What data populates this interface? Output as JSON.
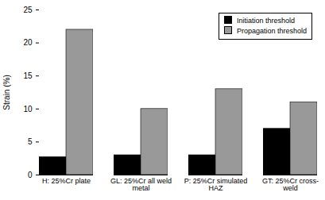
{
  "chart_data": {
    "type": "bar",
    "y_label": "Strain (%)",
    "categories": [
      "H: 25%Cr plate",
      "GL: 25%Cr all weld metal",
      "P: 25%Cr simulated HAZ",
      "GT: 25%Cr cross-weld"
    ],
    "series": [
      {
        "name": "Initiation threshold",
        "color": "#000000",
        "values": [
          2.7,
          3,
          3,
          7
        ]
      },
      {
        "name": "Propagation threshold",
        "color": "#999999",
        "values": [
          22,
          10,
          13,
          11
        ]
      }
    ],
    "ylim": [
      0,
      25
    ],
    "yticks": [
      0,
      5,
      10,
      15,
      20,
      25
    ],
    "grid": false,
    "legend": "top-right"
  }
}
